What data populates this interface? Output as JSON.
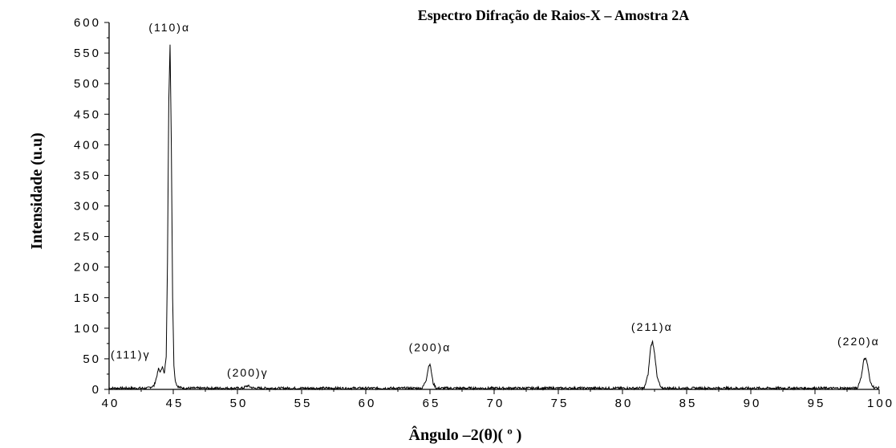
{
  "chart_data": {
    "type": "line",
    "title": "Espectro Difração de Raios-X – Amostra 2A",
    "xlabel": "Ângulo –2(θ)( º )",
    "ylabel": "Intensidade (u.u)",
    "xlim": [
      40,
      100
    ],
    "ylim": [
      0,
      600
    ],
    "x_ticks": [
      40,
      45,
      50,
      55,
      60,
      65,
      70,
      75,
      80,
      85,
      90,
      95,
      100
    ],
    "y_ticks": [
      0,
      50,
      100,
      150,
      200,
      250,
      300,
      350,
      400,
      450,
      500,
      550,
      600
    ],
    "grid": false,
    "series": [
      {
        "x": [
          40.0,
          43.0,
          43.5,
          43.7,
          43.85,
          44.0,
          44.15,
          44.3,
          44.45,
          44.55,
          44.65,
          44.75,
          44.85,
          44.95,
          45.05,
          45.15,
          45.3,
          45.5,
          46.0,
          50.4,
          50.8,
          51.0,
          51.3,
          64.4,
          64.7,
          64.9,
          65.0,
          65.1,
          65.25,
          65.5,
          81.7,
          82.0,
          82.2,
          82.35,
          82.5,
          82.7,
          83.0,
          98.3,
          98.6,
          98.8,
          98.95,
          99.1,
          99.3,
          99.6,
          100.0
        ],
        "y": [
          2,
          2,
          6,
          20,
          34,
          28,
          38,
          25,
          55,
          210,
          470,
          565,
          400,
          150,
          40,
          15,
          6,
          3,
          2,
          2,
          6,
          4,
          2,
          2,
          15,
          38,
          42,
          30,
          10,
          2,
          2,
          25,
          70,
          78,
          60,
          20,
          2,
          2,
          20,
          48,
          52,
          40,
          12,
          3,
          2
        ]
      }
    ],
    "annotations": [
      {
        "text": "(111)γ",
        "x": 43.8,
        "y": 35
      },
      {
        "text": "(110)α",
        "x": 44.7,
        "y": 570
      },
      {
        "text": "(200)γ",
        "x": 50.8,
        "y": 8
      },
      {
        "text": "(200)α",
        "x": 65.0,
        "y": 44
      },
      {
        "text": "(211)α",
        "x": 82.3,
        "y": 80
      },
      {
        "text": "(220)α",
        "x": 98.9,
        "y": 54
      }
    ]
  }
}
